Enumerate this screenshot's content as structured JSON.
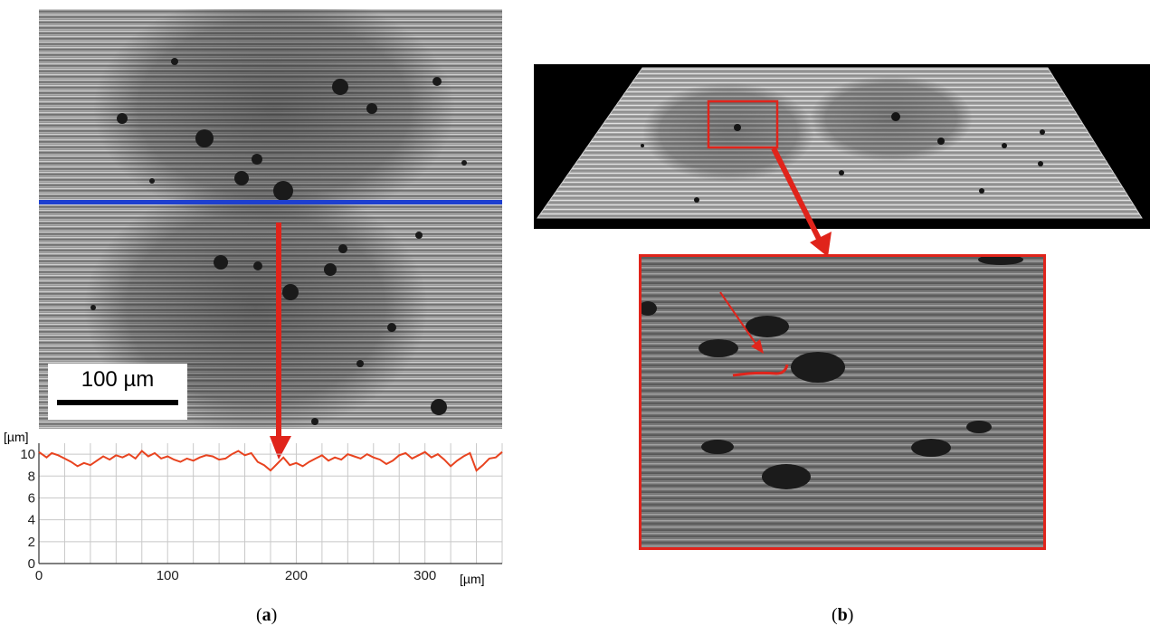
{
  "panel_a": {
    "scale_bar_label": "100 µm",
    "caption_open": "(",
    "caption_letter": "a",
    "caption_close": ")"
  },
  "panel_b": {
    "caption_open": "(",
    "caption_letter": "b",
    "caption_close": ")"
  },
  "chart_data": {
    "type": "line",
    "title": "",
    "xlabel": "[µm]",
    "ylabel": "[µm]",
    "xlim": [
      0,
      360
    ],
    "ylim": [
      0,
      11
    ],
    "x_ticks": [
      0,
      100,
      200,
      300
    ],
    "y_ticks": [
      0,
      2,
      4,
      6,
      8,
      10
    ],
    "grid": true,
    "series": [
      {
        "color": "#e8431f",
        "x": [
          0,
          6,
          10,
          15,
          20,
          25,
          30,
          35,
          40,
          45,
          50,
          55,
          60,
          65,
          70,
          75,
          80,
          85,
          90,
          95,
          100,
          105,
          110,
          115,
          120,
          125,
          130,
          135,
          140,
          145,
          150,
          155,
          160,
          165,
          170,
          175,
          180,
          185,
          190,
          195,
          200,
          205,
          210,
          215,
          220,
          225,
          230,
          235,
          240,
          245,
          250,
          255,
          260,
          265,
          270,
          275,
          280,
          285,
          290,
          295,
          300,
          305,
          310,
          315,
          320,
          325,
          330,
          335,
          340,
          345,
          350,
          355,
          360
        ],
        "y": [
          10.2,
          9.7,
          10.1,
          9.9,
          9.6,
          9.3,
          8.9,
          9.2,
          9.0,
          9.4,
          9.8,
          9.5,
          9.9,
          9.7,
          10.0,
          9.6,
          10.3,
          9.8,
          10.1,
          9.6,
          9.8,
          9.5,
          9.3,
          9.6,
          9.4,
          9.7,
          9.9,
          9.8,
          9.5,
          9.6,
          10.0,
          10.3,
          9.9,
          10.1,
          9.3,
          9.0,
          8.5,
          9.1,
          9.7,
          9.0,
          9.2,
          8.9,
          9.3,
          9.6,
          9.9,
          9.4,
          9.7,
          9.5,
          10.0,
          9.8,
          9.6,
          10.0,
          9.7,
          9.5,
          9.1,
          9.4,
          9.9,
          10.1,
          9.6,
          9.9,
          10.2,
          9.7,
          10.0,
          9.5,
          8.9,
          9.4,
          9.8,
          10.1,
          8.5,
          9.0,
          9.6,
          9.7,
          10.2
        ]
      }
    ]
  }
}
